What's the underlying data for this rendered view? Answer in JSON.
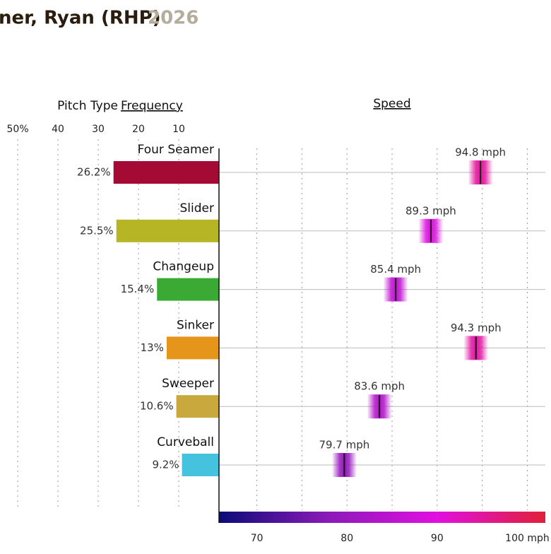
{
  "header": {
    "title": "ner, Ryan (RHP)",
    "year": "2026"
  },
  "chart_data": {
    "type": "pitch-profile",
    "frequency_title_prefix": "Pitch Type",
    "frequency_title": "Frequency",
    "speed_title": "Speed",
    "categories": [
      "Four Seamer",
      "Slider",
      "Changeup",
      "Sinker",
      "Sweeper",
      "Curveball"
    ],
    "colors": [
      "#a50a35",
      "#b5b525",
      "#3aaa35",
      "#e5951a",
      "#c9a83d",
      "#45c3de"
    ],
    "frequency": {
      "values": [
        26.2,
        25.5,
        15.4,
        13,
        10.6,
        9.2
      ],
      "value_labels": [
        "26.2%",
        "25.5%",
        "15.4%",
        "13%",
        "10.6%",
        "9.2%"
      ],
      "xlim": [
        0,
        54.4
      ],
      "xticks": [
        {
          "value": 50,
          "label": "50%"
        },
        40,
        30,
        20,
        10
      ]
    },
    "speed": {
      "values": [
        94.8,
        89.3,
        85.4,
        94.3,
        83.6,
        79.7
      ],
      "value_labels": [
        "94.8 mph",
        "89.3 mph",
        "85.4 mph",
        "94.3 mph",
        "83.6 mph",
        "79.7 mph"
      ],
      "xlim": [
        65.8,
        102
      ],
      "xticks": [
        70,
        80,
        90,
        {
          "value": 100,
          "label": "100 mph"
        }
      ],
      "xgrid": [
        70,
        75,
        80,
        85,
        90,
        95,
        100
      ],
      "colorscale": [
        "#0b0b78",
        "#8a1ab8",
        "#e010e0",
        "#e02038"
      ]
    }
  }
}
